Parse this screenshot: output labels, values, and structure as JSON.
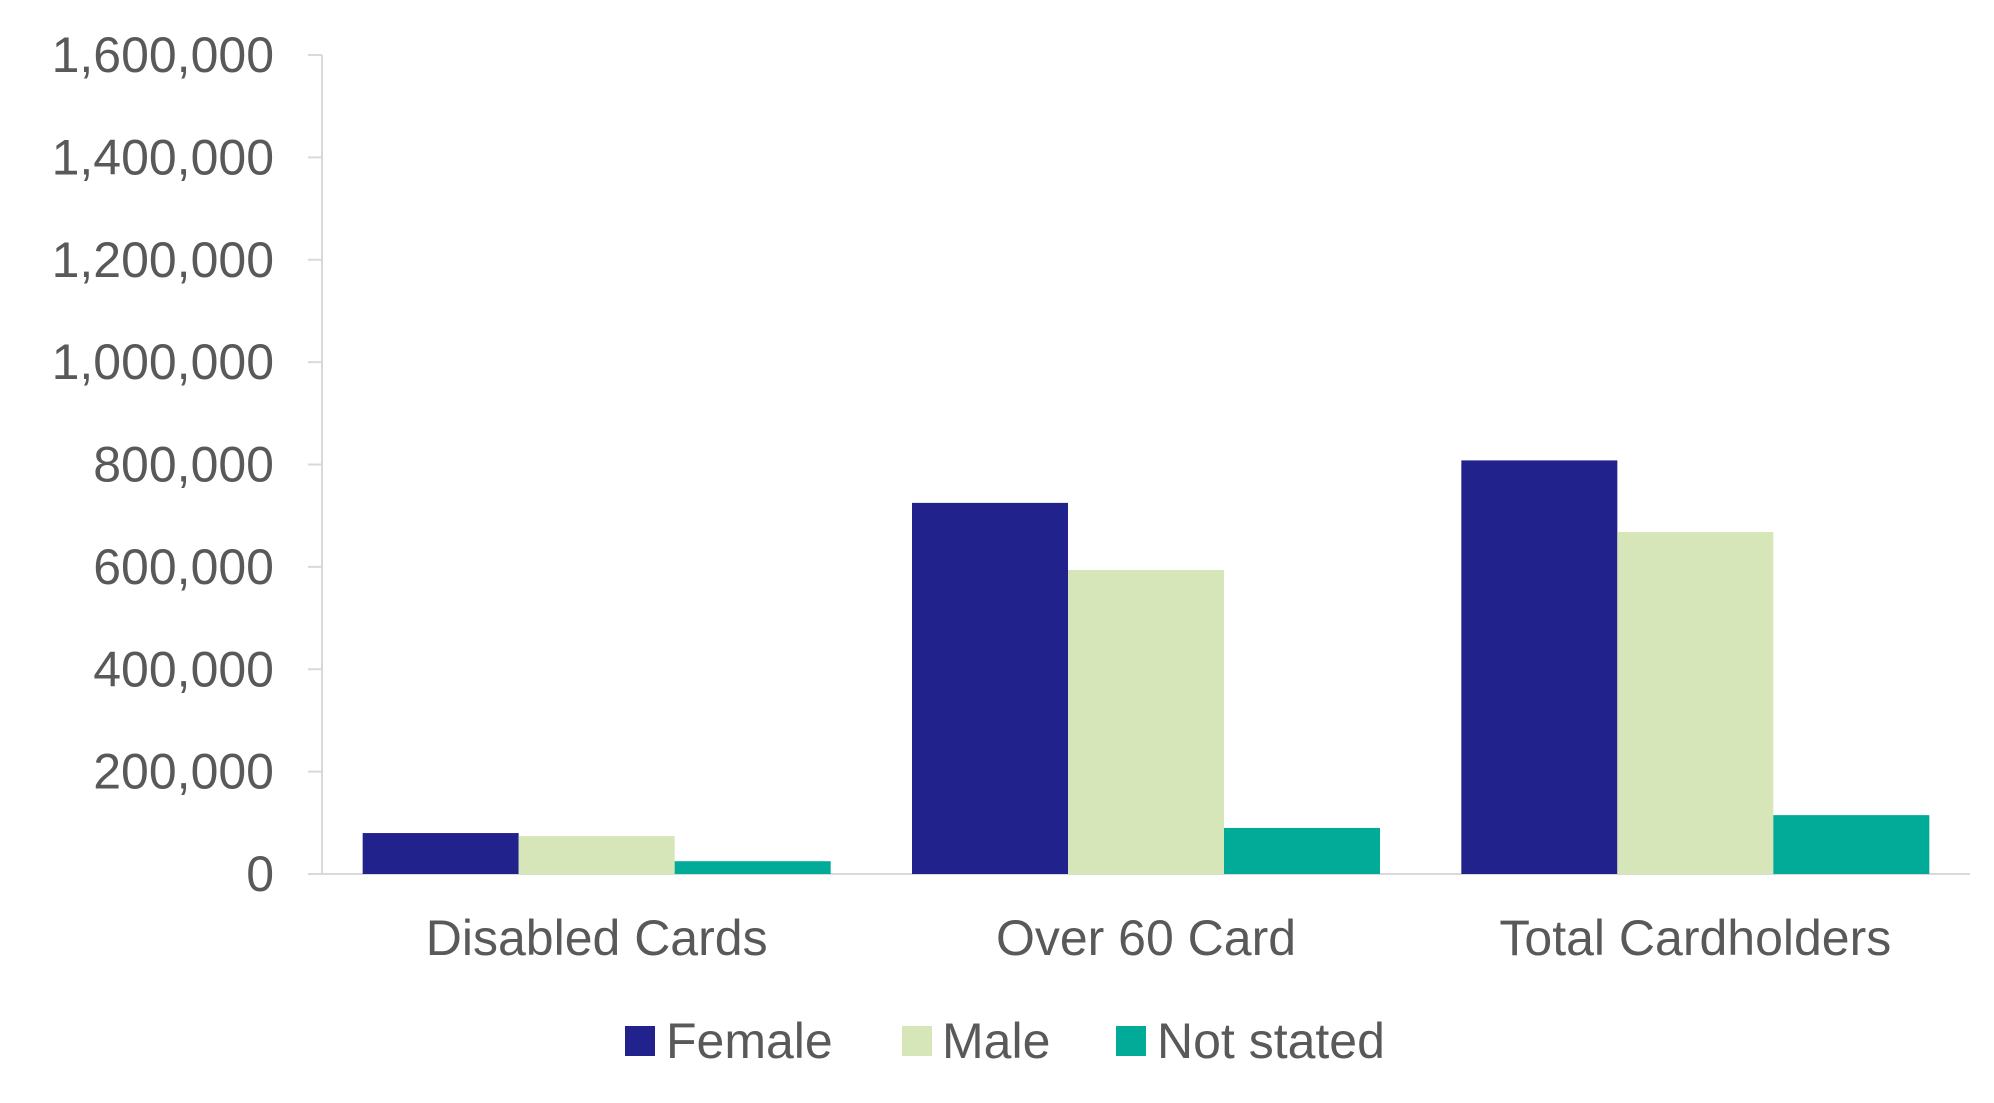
{
  "chart_data": {
    "type": "bar",
    "categories": [
      "Disabled Cards",
      "Over 60 Card",
      "Total Cardholders"
    ],
    "series": [
      {
        "name": "Female",
        "color": "#22228c",
        "values": [
          80000,
          725000,
          808000
        ]
      },
      {
        "name": "Male",
        "color": "#d6e6b8",
        "values": [
          74000,
          594000,
          668000
        ]
      },
      {
        "name": "Not stated",
        "color": "#02aa98",
        "values": [
          25000,
          90000,
          115000
        ]
      }
    ],
    "ylim": [
      0,
      1600000
    ],
    "yticks": [
      "0",
      "200,000",
      "400,000",
      "600,000",
      "800,000",
      "1,000,000",
      "1,200,000",
      "1,400,000",
      "1,600,000"
    ],
    "ytick_values": [
      0,
      200000,
      400000,
      600000,
      800000,
      1000000,
      1200000,
      1400000,
      1600000
    ],
    "grid": false,
    "legend_position": "bottom"
  }
}
